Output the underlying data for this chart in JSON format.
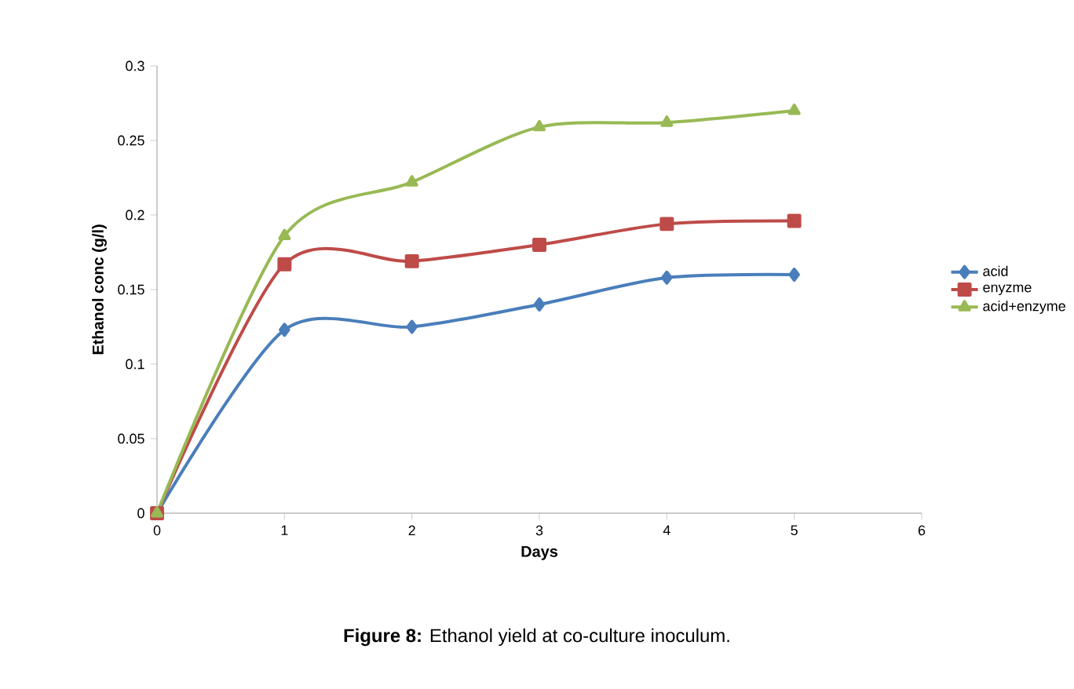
{
  "chart_data": {
    "type": "line",
    "xlabel": "Days",
    "ylabel": "Ethanol conc (g/l)",
    "x": [
      0,
      1,
      2,
      3,
      4,
      5
    ],
    "series": [
      {
        "name": "acid",
        "color": "#4a7ebb",
        "marker": "diamond",
        "values": [
          0,
          0.123,
          0.125,
          0.14,
          0.158,
          0.16
        ]
      },
      {
        "name": "enyzme",
        "color": "#be4b48",
        "marker": "square",
        "values": [
          0,
          0.167,
          0.169,
          0.18,
          0.194,
          0.196
        ]
      },
      {
        "name": "acid+enzyme",
        "color": "#98b954",
        "marker": "triangle",
        "values": [
          0,
          0.186,
          0.222,
          0.259,
          0.262,
          0.27
        ]
      }
    ],
    "xlim": [
      0,
      6
    ],
    "xticks": [
      0,
      1,
      2,
      3,
      4,
      5,
      6
    ],
    "ylim": [
      0,
      0.3
    ],
    "yticks": [
      0,
      0.05,
      0.1,
      0.15,
      0.2,
      0.25,
      0.3
    ],
    "grid": false,
    "legend": "right",
    "line_style": "solid",
    "annotations": [
      "**Figure 8:** Ethanol yield at co-culture inoculum."
    ]
  }
}
